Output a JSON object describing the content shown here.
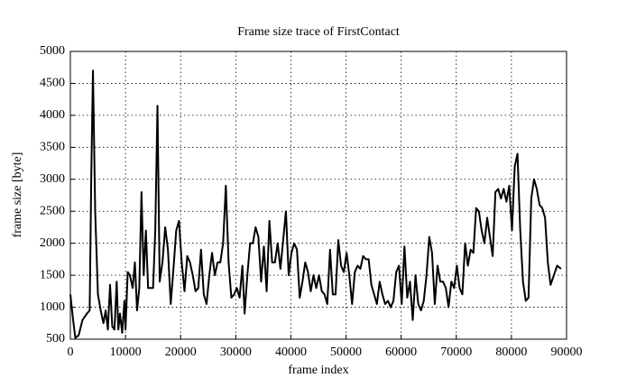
{
  "chart_data": {
    "type": "line",
    "title": "Frame size trace of FirstContact",
    "xlabel": "frame index",
    "ylabel": "frame size [byte]",
    "x": [
      0,
      500,
      900,
      1500,
      2200,
      3000,
      3500,
      3800,
      4100,
      4500,
      5000,
      5500,
      6000,
      6400,
      6800,
      7200,
      7600,
      8000,
      8400,
      8700,
      9000,
      9400,
      9800,
      10000,
      10400,
      10800,
      11300,
      11700,
      12100,
      12500,
      12900,
      13300,
      13700,
      14100,
      14600,
      15000,
      15400,
      15800,
      16200,
      16700,
      17200,
      17700,
      18200,
      18700,
      19200,
      19700,
      20200,
      20700,
      21200,
      21700,
      22200,
      22700,
      23200,
      23700,
      24200,
      24700,
      25200,
      25700,
      26200,
      26700,
      27200,
      27700,
      28200,
      28700,
      29200,
      29700,
      30200,
      30700,
      31200,
      31600,
      32100,
      32600,
      33100,
      33600,
      34100,
      34600,
      35100,
      35600,
      36100,
      36600,
      37100,
      37600,
      38100,
      38600,
      39100,
      39600,
      40100,
      40600,
      41100,
      41600,
      42100,
      42600,
      43100,
      43600,
      44100,
      44600,
      45100,
      45600,
      46100,
      46600,
      47100,
      47600,
      48100,
      48600,
      49100,
      49600,
      50100,
      50600,
      51100,
      51600,
      52100,
      52600,
      53100,
      53600,
      54100,
      54600,
      55100,
      55600,
      56100,
      56600,
      57100,
      57600,
      58100,
      58600,
      59100,
      59600,
      60100,
      60600,
      61100,
      61600,
      62100,
      62600,
      63100,
      63600,
      64100,
      64600,
      65100,
      65600,
      66100,
      66600,
      67100,
      67600,
      68100,
      68600,
      69100,
      69600,
      70100,
      70600,
      71100,
      71600,
      72100,
      72600,
      73100,
      73600,
      74100,
      74600,
      75100,
      75600,
      76100,
      76600,
      77100,
      77600,
      78100,
      78600,
      79100,
      79600,
      80100,
      80600,
      81100,
      81600,
      82100,
      82600,
      83100,
      83600,
      84100,
      84600,
      85100,
      85600,
      86100,
      86600,
      87100,
      88300,
      89000
    ],
    "series": [
      {
        "name": "FirstContact",
        "color": "#000000",
        "values": [
          1200,
          800,
          520,
          560,
          800,
          900,
          950,
          3100,
          4700,
          2500,
          1200,
          950,
          750,
          950,
          650,
          1350,
          700,
          650,
          1400,
          650,
          900,
          600,
          1100,
          650,
          1550,
          1500,
          1300,
          1700,
          950,
          1300,
          2800,
          1500,
          2200,
          1300,
          1300,
          1300,
          2200,
          4150,
          1400,
          1700,
          2250,
          1900,
          1050,
          1600,
          2200,
          2350,
          1700,
          1250,
          1800,
          1700,
          1500,
          1250,
          1300,
          1900,
          1200,
          1050,
          1500,
          1850,
          1500,
          1700,
          1700,
          2000,
          2900,
          1700,
          1150,
          1200,
          1300,
          1150,
          1650,
          900,
          1500,
          2000,
          2000,
          2250,
          2100,
          1400,
          1950,
          1250,
          2350,
          1700,
          1700,
          2000,
          1600,
          2050,
          2500,
          1500,
          1850,
          2000,
          1900,
          1150,
          1400,
          1700,
          1550,
          1250,
          1500,
          1300,
          1500,
          1250,
          1200,
          1050,
          1900,
          1200,
          1200,
          2050,
          1650,
          1550,
          1850,
          1500,
          1050,
          1550,
          1650,
          1600,
          1800,
          1750,
          1750,
          1350,
          1200,
          1050,
          1400,
          1200,
          1050,
          1100,
          1000,
          1100,
          1550,
          1650,
          1050,
          1950,
          1150,
          1400,
          800,
          1500,
          1050,
          950,
          1100,
          1500,
          2100,
          1850,
          1050,
          1650,
          1400,
          1400,
          1300,
          1000,
          1400,
          1300,
          1650,
          1300,
          1200,
          2000,
          1650,
          1900,
          1850,
          2550,
          2500,
          2200,
          2000,
          2400,
          2100,
          1800,
          2800,
          2850,
          2700,
          2850,
          2650,
          2900,
          2200,
          3200,
          3400,
          2200,
          1400,
          1100,
          1150,
          2700,
          3000,
          2850,
          2600,
          2550,
          2400,
          1700,
          1350,
          1650,
          1600
        ]
      }
    ],
    "xlim": [
      0,
      90000
    ],
    "xticks": [
      0,
      10000,
      20000,
      30000,
      40000,
      50000,
      60000,
      70000,
      80000,
      90000
    ],
    "ylim": [
      500,
      5000
    ],
    "yticks": [
      500,
      1000,
      1500,
      2000,
      2500,
      3000,
      3500,
      4000,
      4500,
      5000
    ],
    "grid": true
  }
}
